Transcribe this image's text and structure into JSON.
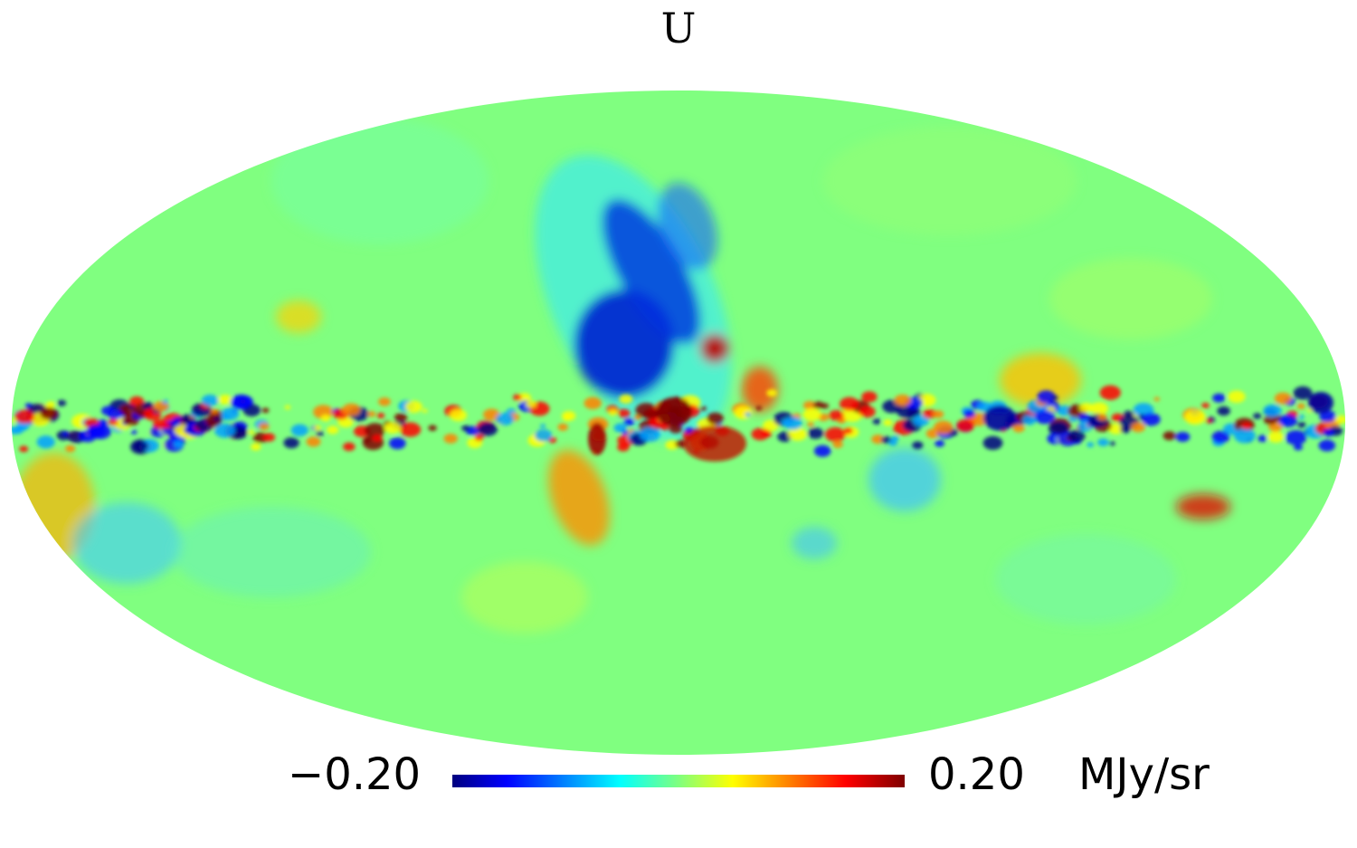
{
  "title": "U",
  "colorbar": {
    "min_label": "−0.20",
    "max_label": "0.20",
    "unit": "MJy/sr",
    "min": -0.2,
    "max": 0.2,
    "colormap": [
      "#00007f",
      "#0000ff",
      "#00ffff",
      "#7fff7f",
      "#ffff00",
      "#ff0000",
      "#7f0000"
    ]
  },
  "map": {
    "projection": "mollweide",
    "background_color": "#80ff80"
  }
}
